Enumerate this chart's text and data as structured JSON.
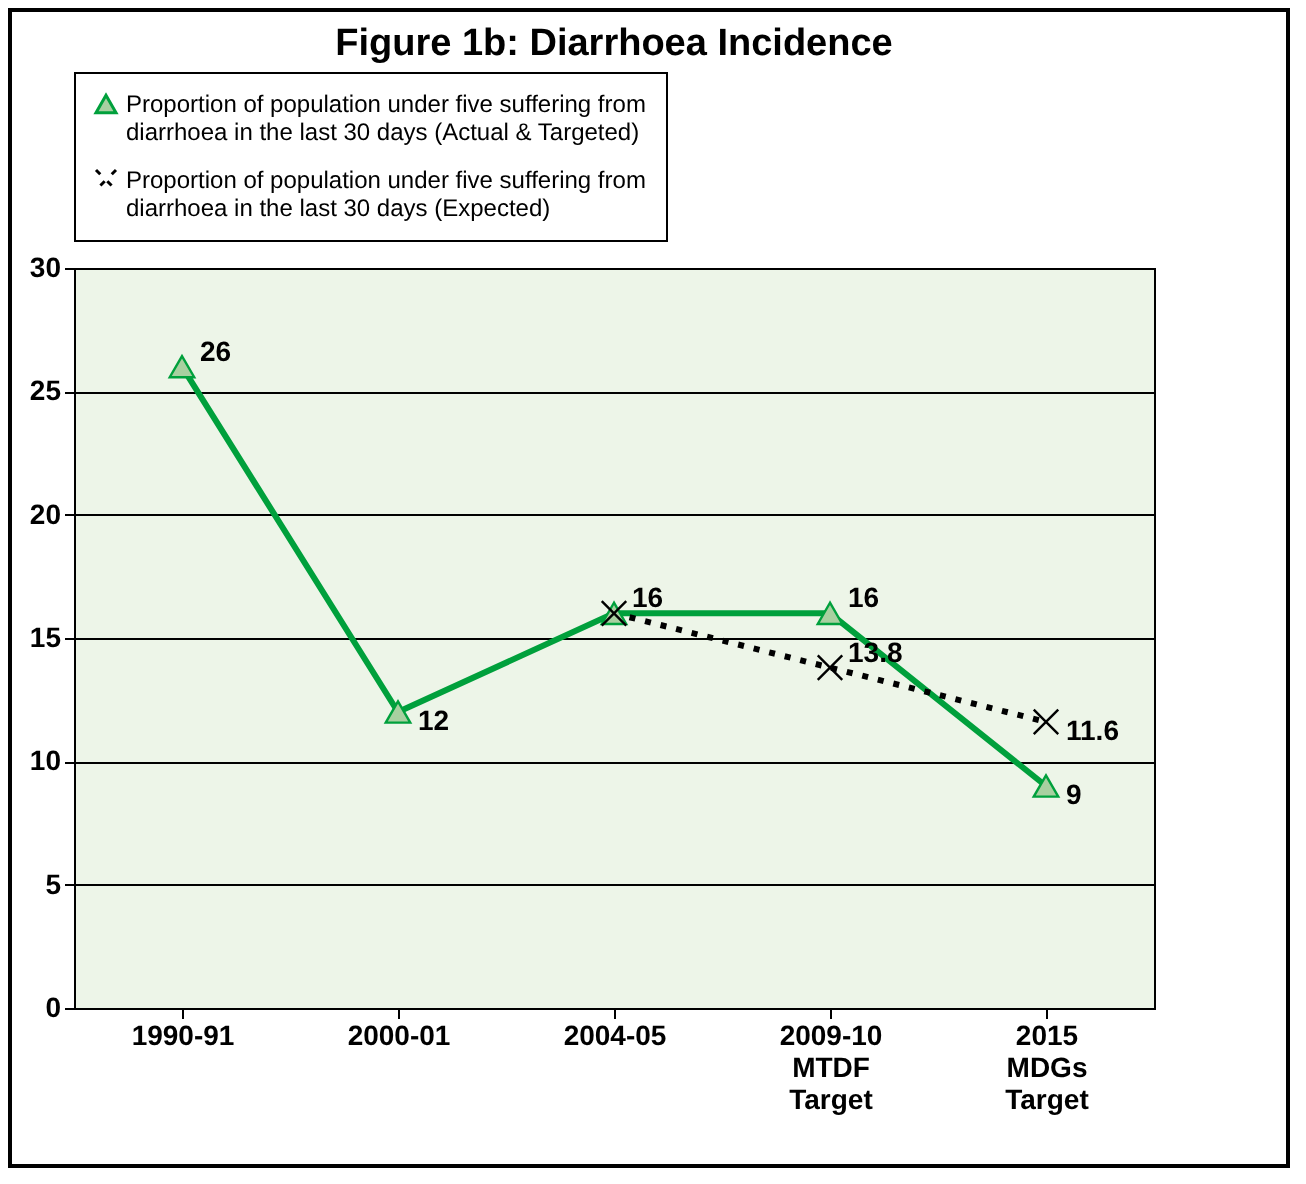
{
  "chart_data": {
    "type": "line",
    "title": "Figure 1b: Diarrhoea Incidence",
    "categories": [
      "1990-91",
      "2000-01",
      "2004-05",
      "2009-10\nMTDF\nTarget",
      "2015\nMDGs\nTarget"
    ],
    "series": [
      {
        "name": "Proportion of population under five suffering from diarrhoea in the last 30 days (Actual & Targeted)",
        "color": "#00a03c",
        "marker": "triangle",
        "line_style": "solid",
        "values": [
          26,
          12,
          16,
          16,
          9
        ],
        "value_labels": [
          "26",
          "12",
          "16",
          "16",
          "9"
        ]
      },
      {
        "name": "Proportion of population under five suffering from diarrhoea in the last 30 days (Expected)",
        "color": "#000000",
        "marker": "cross",
        "line_style": "dotted",
        "values": [
          null,
          null,
          16,
          13.8,
          11.6
        ],
        "value_labels": [
          null,
          null,
          null,
          "13.8",
          "11.6"
        ]
      }
    ],
    "ylim": [
      0,
      30
    ],
    "yticks": [
      0,
      5,
      10,
      15,
      20,
      25,
      30
    ],
    "grid": "y",
    "legend": "top"
  }
}
